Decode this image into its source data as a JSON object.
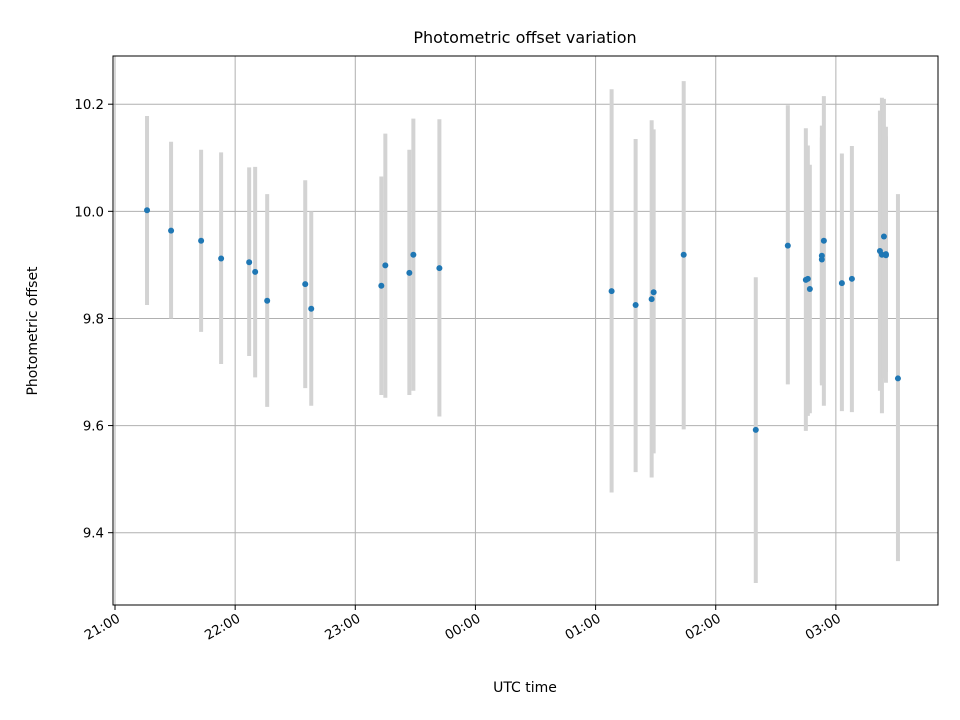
{
  "chart_data": {
    "type": "scatter",
    "title": "Photometric offset variation",
    "xlabel": "UTC time",
    "ylabel": "Photometric offset",
    "x_ticks": [
      "21:00",
      "22:00",
      "23:00",
      "00:00",
      "01:00",
      "02:00",
      "03:00"
    ],
    "y_ticks": [
      "9.4",
      "9.6",
      "9.8",
      "10.0",
      "10.2"
    ],
    "xlim": [
      "20:59",
      "03:51"
    ],
    "ylim": [
      9.265,
      10.29
    ],
    "grid": true,
    "errorbar_color": "#d3d3d3",
    "point_color": "#1f77b4",
    "points": [
      {
        "t": "21:16",
        "y": 10.002,
        "lo": 9.825,
        "hi": 10.178
      },
      {
        "t": "21:28",
        "y": 9.964,
        "lo": 9.8,
        "hi": 10.13
      },
      {
        "t": "21:43",
        "y": 9.945,
        "lo": 9.775,
        "hi": 10.115
      },
      {
        "t": "21:53",
        "y": 9.912,
        "lo": 9.715,
        "hi": 10.11
      },
      {
        "t": "22:07",
        "y": 9.905,
        "lo": 9.73,
        "hi": 10.082
      },
      {
        "t": "22:10",
        "y": 9.887,
        "lo": 9.69,
        "hi": 10.083
      },
      {
        "t": "22:16",
        "y": 9.833,
        "lo": 9.635,
        "hi": 10.032
      },
      {
        "t": "22:35",
        "y": 9.864,
        "lo": 9.67,
        "hi": 10.058
      },
      {
        "t": "22:38",
        "y": 9.818,
        "lo": 9.637,
        "hi": 10.0
      },
      {
        "t": "23:13",
        "y": 9.861,
        "lo": 9.657,
        "hi": 10.065
      },
      {
        "t": "23:15",
        "y": 9.899,
        "lo": 9.652,
        "hi": 10.145
      },
      {
        "t": "23:27",
        "y": 9.885,
        "lo": 9.657,
        "hi": 10.115
      },
      {
        "t": "23:29",
        "y": 9.919,
        "lo": 9.665,
        "hi": 10.173
      },
      {
        "t": "23:42",
        "y": 9.894,
        "lo": 9.617,
        "hi": 10.172
      },
      {
        "t": "01:08",
        "y": 9.851,
        "lo": 9.475,
        "hi": 10.228
      },
      {
        "t": "01:20",
        "y": 9.825,
        "lo": 9.513,
        "hi": 10.135
      },
      {
        "t": "01:28",
        "y": 9.836,
        "lo": 9.503,
        "hi": 10.17
      },
      {
        "t": "01:29",
        "y": 9.849,
        "lo": 9.548,
        "hi": 10.153
      },
      {
        "t": "01:44",
        "y": 9.919,
        "lo": 9.593,
        "hi": 10.243
      },
      {
        "t": "02:20",
        "y": 9.592,
        "lo": 9.306,
        "hi": 9.877
      },
      {
        "t": "02:36",
        "y": 9.936,
        "lo": 9.677,
        "hi": 10.198
      },
      {
        "t": "02:45",
        "y": 9.872,
        "lo": 9.59,
        "hi": 10.155
      },
      {
        "t": "02:46",
        "y": 9.874,
        "lo": 9.618,
        "hi": 10.123
      },
      {
        "t": "02:47",
        "y": 9.855,
        "lo": 9.623,
        "hi": 10.087
      },
      {
        "t": "02:53",
        "y": 9.91,
        "lo": 9.68,
        "hi": 10.138
      },
      {
        "t": "02:53",
        "y": 9.917,
        "lo": 9.675,
        "hi": 10.16
      },
      {
        "t": "02:54",
        "y": 9.945,
        "lo": 9.637,
        "hi": 10.215
      },
      {
        "t": "03:03",
        "y": 9.866,
        "lo": 9.627,
        "hi": 10.108
      },
      {
        "t": "03:08",
        "y": 9.874,
        "lo": 9.625,
        "hi": 10.122
      },
      {
        "t": "03:22",
        "y": 9.926,
        "lo": 9.665,
        "hi": 10.188
      },
      {
        "t": "03:23",
        "y": 9.919,
        "lo": 9.623,
        "hi": 10.212
      },
      {
        "t": "03:24",
        "y": 9.953,
        "lo": 9.688,
        "hi": 10.21
      },
      {
        "t": "03:25",
        "y": 9.918,
        "lo": 9.68,
        "hi": 10.158
      },
      {
        "t": "03:25",
        "y": 9.92,
        "lo": 9.7,
        "hi": 10.14
      },
      {
        "t": "03:31",
        "y": 9.688,
        "lo": 9.347,
        "hi": 10.032
      }
    ]
  }
}
